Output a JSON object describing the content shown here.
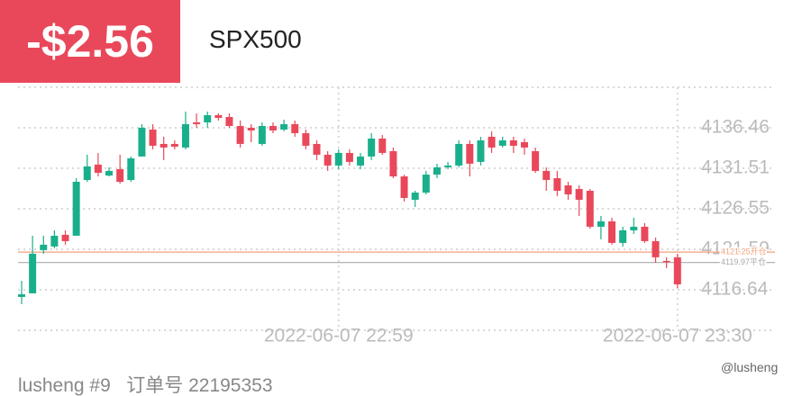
{
  "header": {
    "pnl": "-$2.56",
    "symbol": "SPX500"
  },
  "footer": {
    "text": "lusheng #9   订单号 22195353",
    "watermark": "@lusheng"
  },
  "chart_data": {
    "type": "candlestick",
    "categories": [
      null,
      null,
      null,
      null,
      null,
      null,
      null,
      null,
      null,
      null,
      null,
      null,
      null,
      null,
      null,
      null,
      null,
      null,
      null,
      null,
      null,
      null,
      null,
      null,
      null,
      null,
      null,
      null,
      null,
      "2022-06-07 22:59",
      null,
      null,
      null,
      null,
      null,
      null,
      null,
      null,
      null,
      null,
      null,
      null,
      null,
      null,
      null,
      null,
      null,
      null,
      null,
      null,
      null,
      null,
      null,
      null,
      null,
      null,
      null,
      null,
      null,
      null,
      "2022-06-07 23:30"
    ],
    "open": [
      4115.76,
      4116.2,
      4121.49,
      4121.93,
      4123.36,
      4123.25,
      4130.07,
      4131.95,
      4130.62,
      4131.4,
      4130.07,
      4132.94,
      4136.24,
      4134.48,
      4134.48,
      4134.04,
      4137.12,
      4137.12,
      4138.0,
      4137.78,
      4136.68,
      4136.46,
      4134.48,
      4136.68,
      4136.24,
      4136.9,
      4135.8,
      4134.48,
      4133.16,
      4131.84,
      4133.38,
      4131.84,
      4132.94,
      4135.14,
      4133.6,
      4130.51,
      4127.65,
      4128.53,
      4130.73,
      4131.62,
      4131.84,
      4134.48,
      4132.28,
      4135.36,
      4134.26,
      4134.92,
      4134.7,
      4133.6,
      4131.18,
      4130.29,
      4129.41,
      4128.97,
      4128.75,
      4124.35,
      4125.01,
      4122.37,
      4123.91,
      4124.35,
      4122.59,
      4120.17,
      4120.61
    ],
    "high": [
      4117.74,
      4123.25,
      4123.25,
      4123.91,
      4123.91,
      4130.29,
      4133.16,
      4133.38,
      4131.62,
      4133.16,
      4132.94,
      4136.9,
      4136.9,
      4135.36,
      4134.92,
      4138.44,
      4138.22,
      4138.44,
      4138.22,
      4138.22,
      4137.34,
      4136.9,
      4137.12,
      4137.12,
      4137.45,
      4137.34,
      4136.24,
      4134.92,
      4133.6,
      4133.82,
      4133.82,
      4133.38,
      4135.8,
      4135.58,
      4134.04,
      4130.73,
      4128.75,
      4131.18,
      4132.06,
      4132.28,
      4134.92,
      4134.92,
      4135.36,
      4136.02,
      4135.36,
      4135.36,
      4135.14,
      4134.04,
      4131.62,
      4131.18,
      4129.85,
      4129.41,
      4128.97,
      4125.67,
      4125.45,
      4124.35,
      4125.45,
      4124.79,
      4123.03,
      4120.61,
      4121.05
    ],
    "low": [
      4114.88,
      4116.2,
      4121.05,
      4121.71,
      4122.15,
      4123.25,
      4129.85,
      4130.51,
      4130.51,
      4129.63,
      4129.85,
      4132.94,
      4133.82,
      4132.5,
      4133.82,
      4133.82,
      4136.46,
      4136.46,
      4137.34,
      4136.46,
      4134.04,
      4134.7,
      4134.26,
      4135.8,
      4136.02,
      4135.36,
      4133.82,
      4132.5,
      4131.18,
      4131.4,
      4131.84,
      4131.4,
      4132.5,
      4133.16,
      4130.29,
      4127.43,
      4126.77,
      4128.31,
      4130.29,
      4131.4,
      4131.62,
      4130.51,
      4131.84,
      4133.38,
      4134.04,
      4133.38,
      4133.16,
      4130.95,
      4128.75,
      4128.09,
      4127.65,
      4125.67,
      4124.13,
      4122.81,
      4122.15,
      4121.93,
      4123.47,
      4122.37,
      4119.94,
      4119.28,
      4116.86
    ],
    "close": [
      4116.09,
      4121.05,
      4122.15,
      4123.25,
      4122.59,
      4129.85,
      4131.73,
      4130.95,
      4131.18,
      4129.85,
      4132.72,
      4136.46,
      4134.26,
      4134.04,
      4134.15,
      4136.9,
      4136.9,
      4138.0,
      4137.67,
      4136.68,
      4134.48,
      4136.13,
      4136.68,
      4136.13,
      4136.9,
      4135.8,
      4134.26,
      4133.16,
      4131.84,
      4133.38,
      4132.28,
      4132.94,
      4135.14,
      4133.38,
      4130.51,
      4127.87,
      4128.53,
      4130.73,
      4131.62,
      4131.84,
      4134.48,
      4132.06,
      4134.92,
      4134.04,
      4134.92,
      4134.26,
      4134.04,
      4131.18,
      4130.07,
      4128.75,
      4128.31,
      4127.65,
      4124.35,
      4125.01,
      4122.37,
      4123.91,
      4124.35,
      4122.59,
      4120.61,
      4120.06,
      4117.3
    ],
    "up_color": "#1aaf8b",
    "down_color": "#e9485a",
    "ylim": [
      4111.68,
      4141.41
    ],
    "yticks": [
      4116.64,
      4121.59,
      4126.55,
      4131.51,
      4136.46
    ],
    "lines": [
      {
        "value": 4121.25,
        "label": "4121.25开仓",
        "color": "#f4a07a"
      },
      {
        "value": 4119.97,
        "label": "4119.97平仓",
        "color": "#aaaaaa"
      }
    ],
    "grid": true
  }
}
